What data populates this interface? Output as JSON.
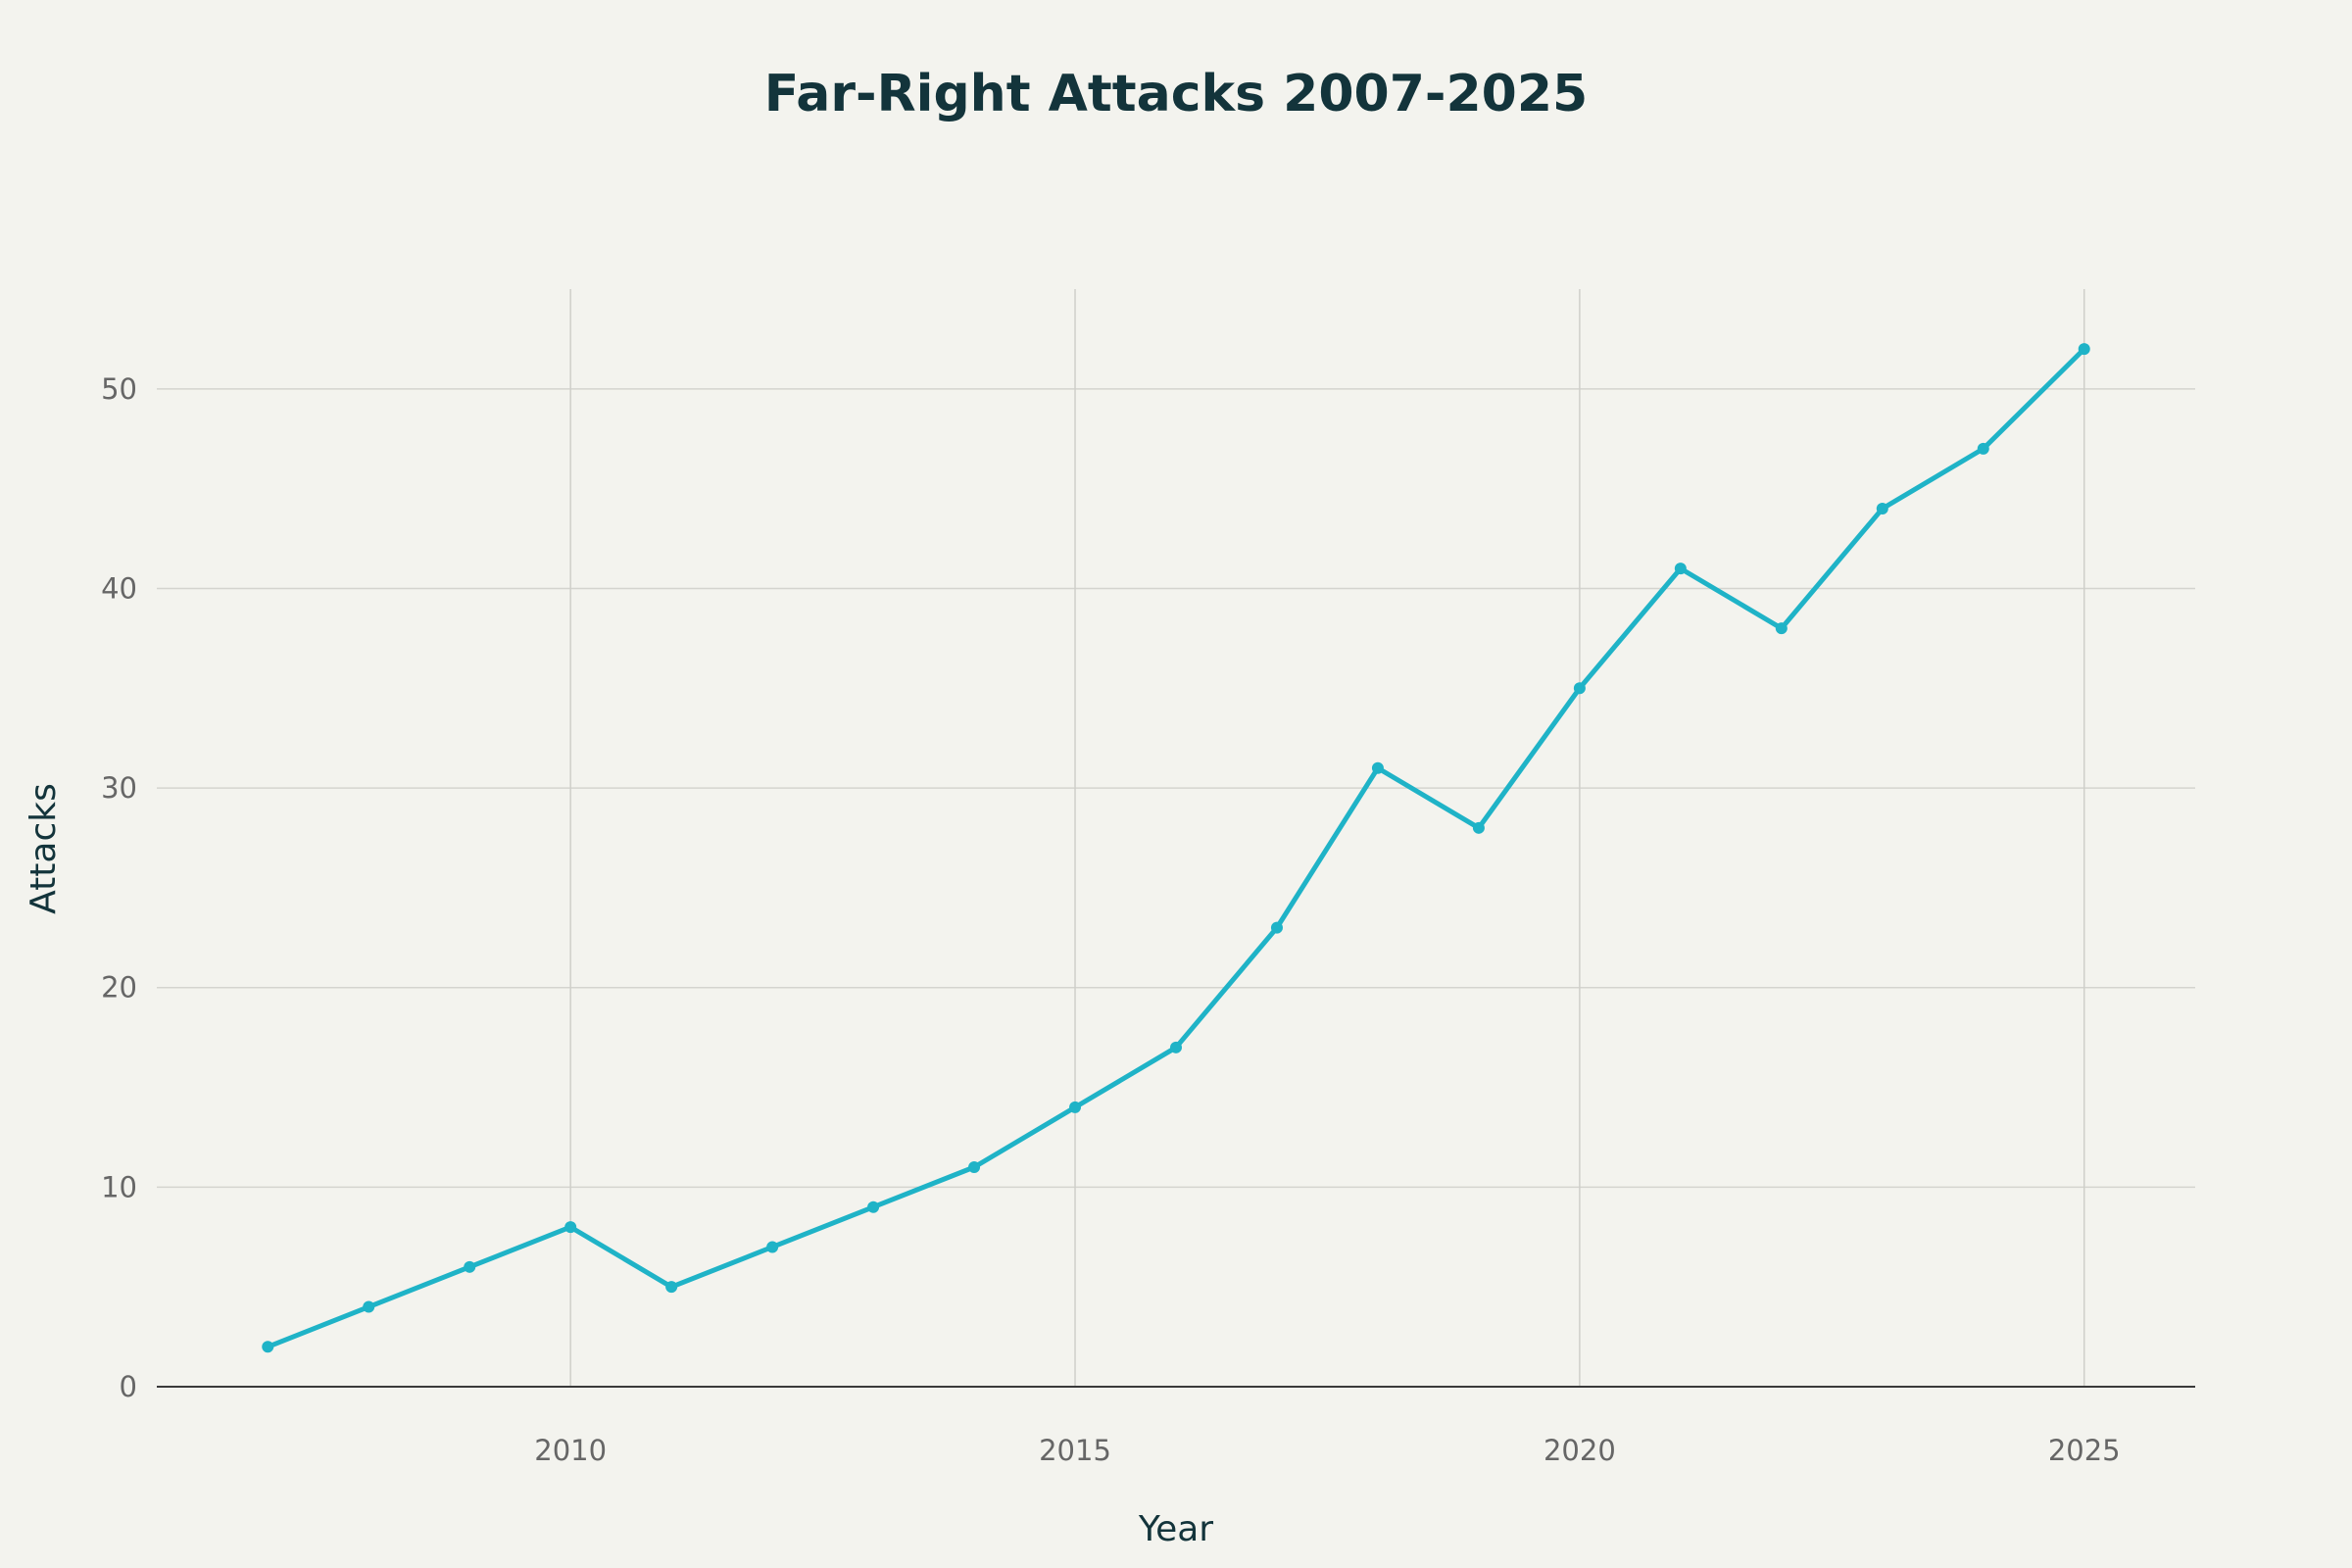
{
  "chart_data": {
    "type": "line",
    "title": "Far-Right Attacks 2007-2025",
    "xlabel": "Year",
    "ylabel": "Attacks",
    "x": [
      2007,
      2008,
      2009,
      2010,
      2011,
      2012,
      2013,
      2014,
      2015,
      2016,
      2017,
      2018,
      2019,
      2020,
      2021,
      2022,
      2023,
      2024,
      2025
    ],
    "series": [
      {
        "color": "#1fb3c7",
        "values": [
          2,
          4,
          6,
          8,
          5,
          7,
          9,
          11,
          14,
          17,
          23,
          31,
          28,
          35,
          41,
          38,
          44,
          47,
          52
        ]
      }
    ],
    "xlim": [
      2005.9,
      2026.1
    ],
    "ylim": [
      0,
      55
    ],
    "xticks": [
      2010,
      2015,
      2020,
      2025
    ],
    "yticks": [
      0,
      10,
      20,
      30,
      40,
      50
    ],
    "grid": true,
    "legend": "none"
  }
}
